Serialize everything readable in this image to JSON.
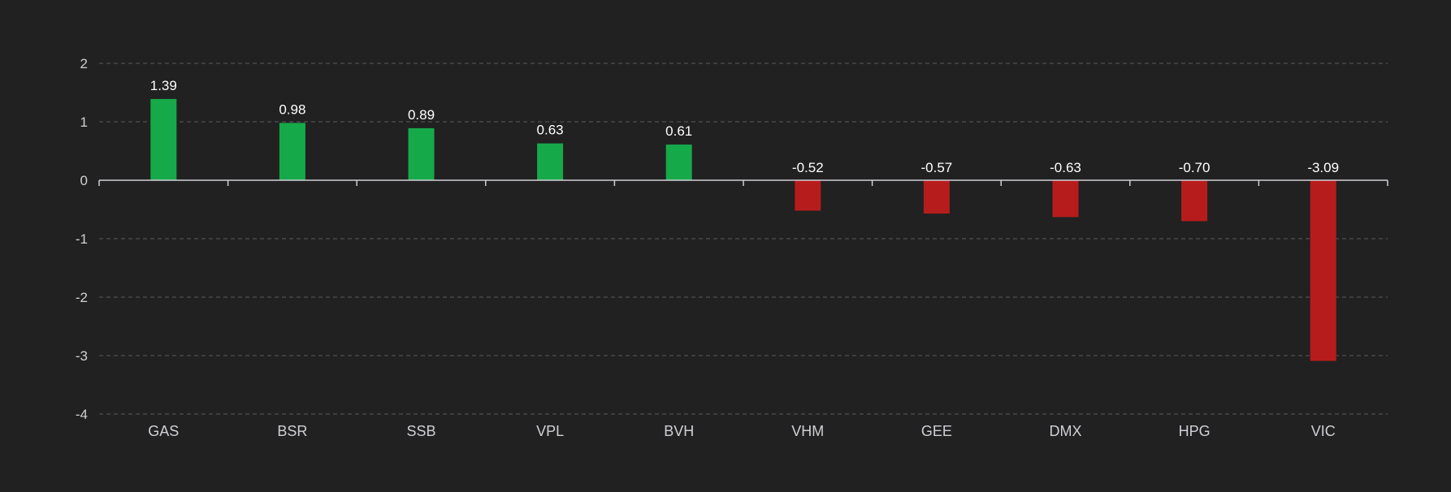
{
  "chart_data": {
    "type": "bar",
    "categories": [
      "GAS",
      "BSR",
      "SSB",
      "VPL",
      "BVH",
      "VHM",
      "GEE",
      "DMX",
      "HPG",
      "VIC"
    ],
    "values": [
      1.39,
      0.98,
      0.89,
      0.63,
      0.61,
      -0.52,
      -0.57,
      -0.63,
      -0.7,
      -3.09
    ],
    "value_labels": [
      "1.39",
      "0.98",
      "0.89",
      "0.63",
      "0.61",
      "-0.52",
      "-0.57",
      "-0.63",
      "-0.70",
      "-3.09"
    ],
    "ylim": [
      -4,
      2
    ],
    "yticks": [
      2,
      1,
      0,
      -1,
      -2,
      -3,
      -4
    ],
    "grid": true,
    "colors": {
      "positive": "#16a94a",
      "negative": "#b71c1c",
      "background": "#212121",
      "grid": "#5a5a5a",
      "axis": "#cfcfd6"
    }
  }
}
